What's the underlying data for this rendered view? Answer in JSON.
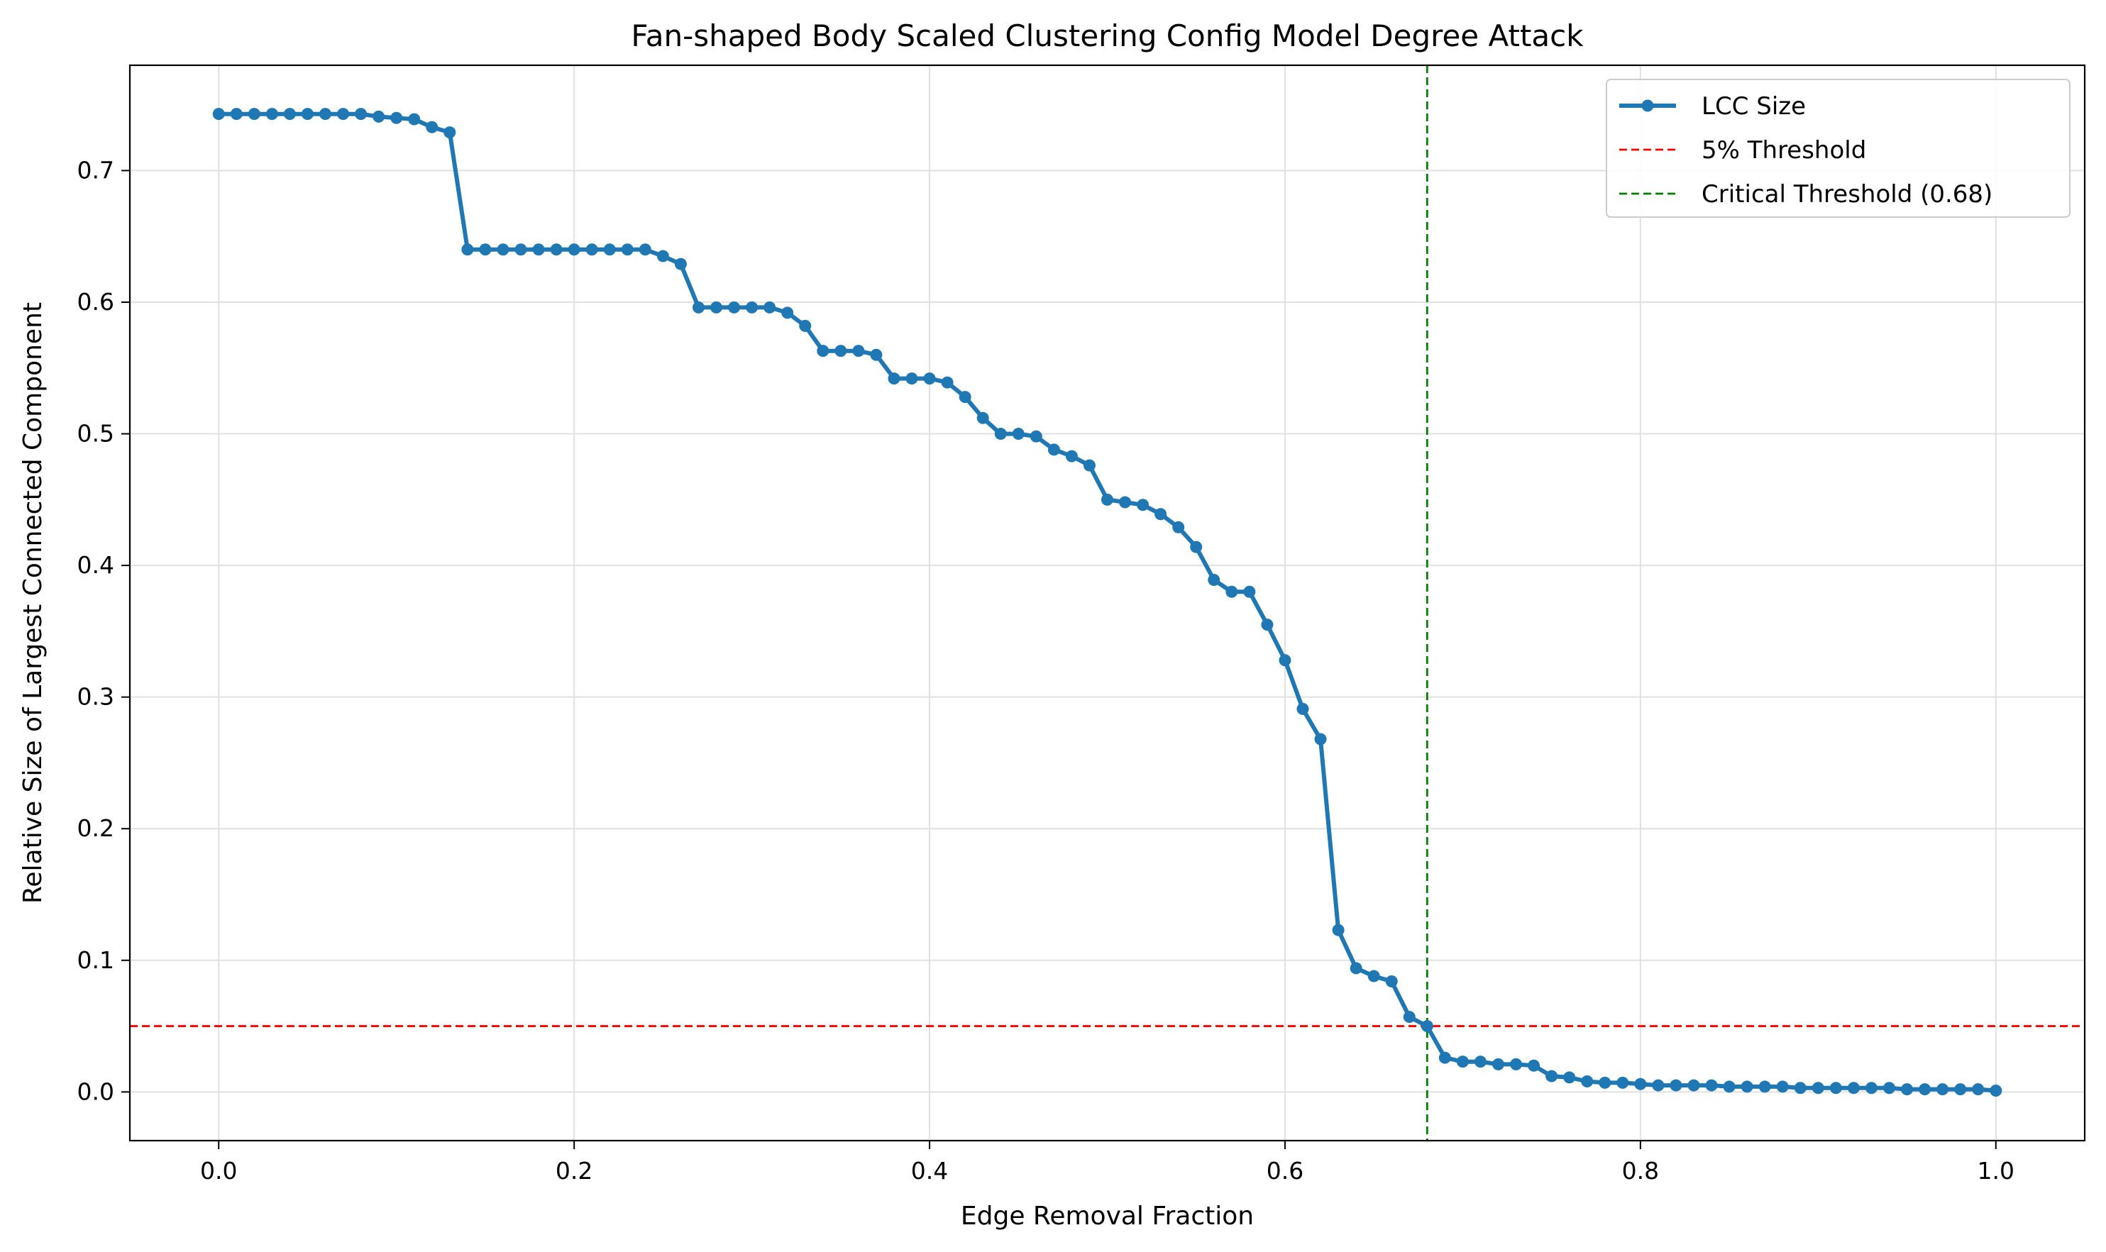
{
  "chart_data": {
    "type": "line",
    "title": "Fan-shaped Body Scaled Clustering Config Model Degree Attack",
    "xlabel": "Edge Removal Fraction",
    "ylabel": "Relative Size of Largest Connected Component",
    "xlim": [
      -0.05,
      1.05
    ],
    "ylim": [
      -0.037,
      0.78
    ],
    "xticks": [
      0.0,
      0.2,
      0.4,
      0.6,
      0.8,
      1.0
    ],
    "xtick_labels": [
      "0.0",
      "0.2",
      "0.4",
      "0.6",
      "0.8",
      "1.0"
    ],
    "yticks": [
      0.0,
      0.1,
      0.2,
      0.3,
      0.4,
      0.5,
      0.6,
      0.7
    ],
    "ytick_labels": [
      "0.0",
      "0.1",
      "0.2",
      "0.3",
      "0.4",
      "0.5",
      "0.6",
      "0.7"
    ],
    "grid": true,
    "legend_position": "top-right",
    "series": [
      {
        "name": "LCC Size",
        "color": "#1f77b4",
        "style": "line-marker",
        "x": [
          0.0,
          0.01,
          0.02,
          0.03,
          0.04,
          0.05,
          0.06,
          0.07,
          0.08,
          0.09,
          0.1,
          0.11,
          0.12,
          0.13,
          0.14,
          0.15,
          0.16,
          0.17,
          0.18,
          0.19,
          0.2,
          0.21,
          0.22,
          0.23,
          0.24,
          0.25,
          0.26,
          0.27,
          0.28,
          0.29,
          0.3,
          0.31,
          0.32,
          0.33,
          0.34,
          0.35,
          0.36,
          0.37,
          0.38,
          0.39,
          0.4,
          0.41,
          0.42,
          0.43,
          0.44,
          0.45,
          0.46,
          0.47,
          0.48,
          0.49,
          0.5,
          0.51,
          0.52,
          0.53,
          0.54,
          0.55,
          0.56,
          0.57,
          0.58,
          0.59,
          0.6,
          0.61,
          0.62,
          0.63,
          0.64,
          0.65,
          0.66,
          0.67,
          0.68,
          0.69,
          0.7,
          0.71,
          0.72,
          0.73,
          0.74,
          0.75,
          0.76,
          0.77,
          0.78,
          0.79,
          0.8,
          0.81,
          0.82,
          0.83,
          0.84,
          0.85,
          0.86,
          0.87,
          0.88,
          0.89,
          0.9,
          0.91,
          0.92,
          0.93,
          0.94,
          0.95,
          0.96,
          0.97,
          0.98,
          0.99,
          1.0
        ],
        "y": [
          0.743,
          0.743,
          0.743,
          0.743,
          0.743,
          0.743,
          0.743,
          0.743,
          0.743,
          0.741,
          0.74,
          0.739,
          0.733,
          0.729,
          0.64,
          0.64,
          0.64,
          0.64,
          0.64,
          0.64,
          0.64,
          0.64,
          0.64,
          0.64,
          0.64,
          0.635,
          0.629,
          0.596,
          0.596,
          0.596,
          0.596,
          0.596,
          0.592,
          0.582,
          0.563,
          0.563,
          0.563,
          0.56,
          0.542,
          0.542,
          0.542,
          0.539,
          0.528,
          0.512,
          0.5,
          0.5,
          0.498,
          0.488,
          0.483,
          0.476,
          0.45,
          0.448,
          0.446,
          0.439,
          0.429,
          0.414,
          0.389,
          0.38,
          0.38,
          0.355,
          0.328,
          0.291,
          0.268,
          0.123,
          0.094,
          0.088,
          0.084,
          0.057,
          0.05,
          0.026,
          0.023,
          0.023,
          0.021,
          0.021,
          0.02,
          0.012,
          0.011,
          0.008,
          0.007,
          0.007,
          0.006,
          0.005,
          0.005,
          0.005,
          0.005,
          0.004,
          0.004,
          0.004,
          0.004,
          0.003,
          0.003,
          0.003,
          0.003,
          0.003,
          0.003,
          0.002,
          0.002,
          0.002,
          0.002,
          0.002,
          0.001
        ]
      }
    ],
    "reference_lines": [
      {
        "name": "5% Threshold",
        "orientation": "horizontal",
        "value": 0.05,
        "color": "#ff0000",
        "style": "dashed"
      },
      {
        "name": "Critical Threshold (0.68)",
        "orientation": "vertical",
        "value": 0.68,
        "color": "#008000",
        "style": "dashed"
      }
    ]
  }
}
